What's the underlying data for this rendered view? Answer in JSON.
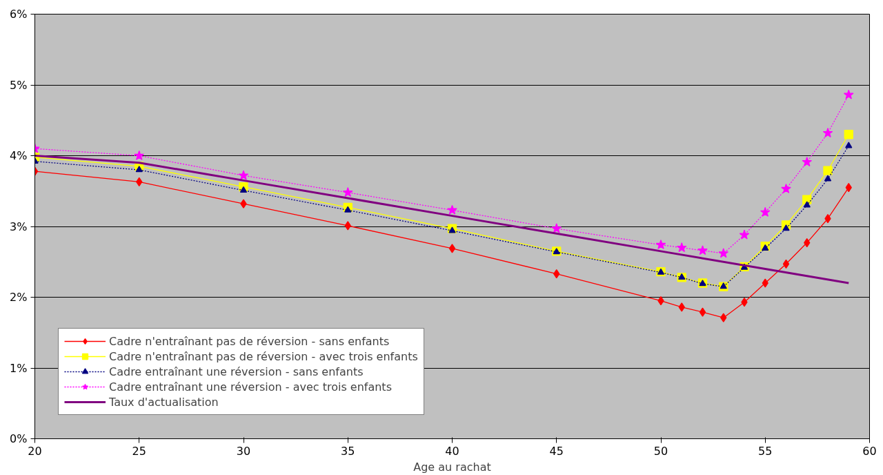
{
  "chart_data": {
    "type": "line",
    "xlabel": "Age au rachat",
    "x": [
      20,
      25,
      30,
      35,
      40,
      45,
      50,
      51,
      52,
      53,
      54,
      55,
      56,
      57,
      58,
      59
    ],
    "xlim": [
      20,
      60
    ],
    "xticks": [
      20,
      25,
      30,
      35,
      40,
      45,
      50,
      55,
      60
    ],
    "ylim": [
      0,
      6
    ],
    "yticks": [
      {
        "value": 0,
        "label": "0%"
      },
      {
        "value": 1,
        "label": "1%"
      },
      {
        "value": 2,
        "label": "2%"
      },
      {
        "value": 3,
        "label": "3%"
      },
      {
        "value": 4,
        "label": "4%"
      },
      {
        "value": 5,
        "label": "5%"
      },
      {
        "value": 6,
        "label": "6%"
      }
    ],
    "grid": "y",
    "legend": "bottom left",
    "series": [
      {
        "name": "Cadre n'entraînant pas de réversion - sans enfants",
        "color": "#ff0000",
        "marker": "diamond",
        "line_style": "solid",
        "values": [
          3.78,
          3.63,
          3.32,
          3.01,
          2.69,
          2.33,
          1.95,
          1.86,
          1.79,
          1.71,
          1.93,
          2.2,
          2.47,
          2.77,
          3.11,
          3.55
        ]
      },
      {
        "name": "Cadre n'entraînant pas de réversion - avec trois enfants",
        "color": "#ffff00",
        "marker": "square",
        "line_style": "solid",
        "values": [
          3.98,
          3.85,
          3.56,
          3.27,
          2.97,
          2.65,
          2.36,
          2.28,
          2.2,
          2.15,
          2.43,
          2.72,
          3.02,
          3.38,
          3.79,
          4.3
        ]
      },
      {
        "name": "Cadre entraînant une réversion - sans enfants",
        "color": "#000080",
        "marker": "triangle",
        "line_style": "dotted",
        "values": [
          3.92,
          3.8,
          3.51,
          3.23,
          2.94,
          2.64,
          2.35,
          2.28,
          2.19,
          2.15,
          2.42,
          2.69,
          2.97,
          3.3,
          3.67,
          4.14
        ]
      },
      {
        "name": "Cadre entraînant une réversion - avec trois enfants",
        "color": "#ff00ff",
        "marker": "star",
        "line_style": "dotted",
        "values": [
          4.1,
          4.0,
          3.72,
          3.48,
          3.23,
          2.97,
          2.74,
          2.7,
          2.66,
          2.62,
          2.88,
          3.2,
          3.53,
          3.91,
          4.32,
          4.86
        ]
      },
      {
        "name": "Taux d'actualisation",
        "color": "#800080",
        "marker": "none",
        "line_style": "solid",
        "x": [
          20,
          25,
          30,
          35,
          40,
          45,
          50,
          55,
          59
        ],
        "values": [
          4.0,
          3.9,
          3.65,
          3.4,
          3.15,
          2.9,
          2.65,
          2.4,
          2.2
        ]
      }
    ]
  }
}
